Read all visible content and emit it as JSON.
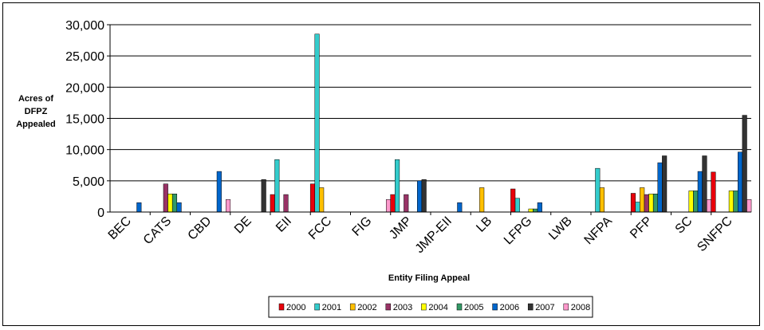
{
  "chart_data": {
    "type": "bar",
    "title": "",
    "ylabel": [
      "Acres of",
      "DFPZ",
      "Appealed"
    ],
    "xlabel": "Entity Filing Appeal",
    "ylim": [
      0,
      30000
    ],
    "yticks": [
      "0",
      "5,000",
      "10,000",
      "15,000",
      "20,000",
      "25,000",
      "30,000"
    ],
    "ytick_values": [
      0,
      5000,
      10000,
      15000,
      20000,
      25000,
      30000
    ],
    "grid": true,
    "legend_position": "bottom",
    "categories": [
      "BEC",
      "CATS",
      "CBD",
      "DE",
      "EII",
      "FCC",
      "FIG",
      "JMP",
      "JMP-EII",
      "LB",
      "LFPG",
      "LWB",
      "NFPA",
      "PFP",
      "SC",
      "SNFPC"
    ],
    "series": [
      {
        "name": "2000",
        "color": "#e8000b",
        "values": [
          0,
          0,
          0,
          0,
          2800,
          4500,
          0,
          2800,
          0,
          0,
          3700,
          0,
          0,
          3000,
          0,
          6400
        ]
      },
      {
        "name": "2001",
        "color": "#33cccc",
        "values": [
          0,
          0,
          0,
          0,
          8400,
          28500,
          0,
          8400,
          0,
          0,
          2200,
          0,
          7000,
          1600,
          0,
          0
        ]
      },
      {
        "name": "2002",
        "color": "#ffc000",
        "values": [
          0,
          0,
          0,
          0,
          0,
          3900,
          0,
          0,
          0,
          3900,
          0,
          0,
          3900,
          3900,
          0,
          0
        ]
      },
      {
        "name": "2003",
        "color": "#993366",
        "values": [
          0,
          4500,
          0,
          0,
          2800,
          0,
          0,
          2800,
          0,
          0,
          0,
          0,
          0,
          2800,
          0,
          0
        ]
      },
      {
        "name": "2004",
        "color": "#ffff00",
        "values": [
          0,
          2900,
          0,
          0,
          0,
          0,
          0,
          0,
          0,
          0,
          500,
          0,
          0,
          2900,
          3400,
          3400
        ]
      },
      {
        "name": "2005",
        "color": "#339966",
        "values": [
          0,
          2900,
          0,
          0,
          0,
          0,
          0,
          0,
          0,
          0,
          500,
          0,
          0,
          2900,
          3400,
          3400
        ]
      },
      {
        "name": "2006",
        "color": "#0066cc",
        "values": [
          1500,
          1500,
          6500,
          0,
          0,
          0,
          0,
          5000,
          1500,
          0,
          1500,
          0,
          0,
          7900,
          6500,
          9600
        ]
      },
      {
        "name": "2007",
        "color": "#333333",
        "values": [
          0,
          0,
          0,
          5200,
          0,
          0,
          0,
          5200,
          0,
          0,
          0,
          0,
          0,
          9000,
          9000,
          15500
        ]
      },
      {
        "name": "2008",
        "color": "#ff99cc",
        "values": [
          0,
          0,
          2000,
          0,
          0,
          0,
          2000,
          0,
          0,
          0,
          0,
          0,
          0,
          0,
          2000,
          2000
        ]
      }
    ]
  }
}
